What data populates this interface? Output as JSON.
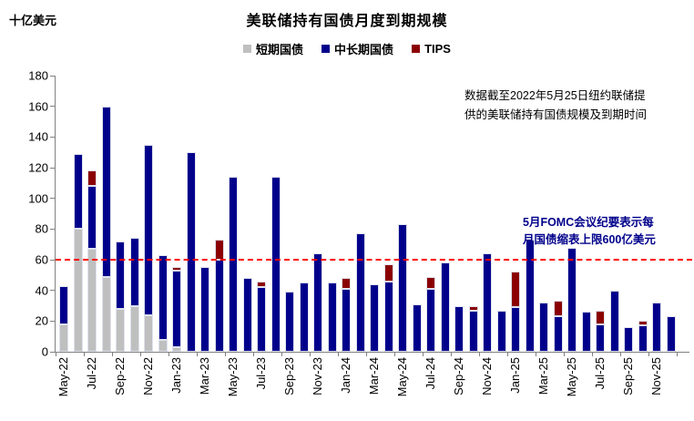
{
  "unit_label": "十亿美元",
  "title": "美联储持有国债月度到期规模",
  "legend": [
    {
      "label": "短期国债",
      "color": "#BFBFBF"
    },
    {
      "label": "中长期国债",
      "color": "#00008B"
    },
    {
      "label": "TIPS",
      "color": "#8B0000"
    }
  ],
  "annotations": {
    "data_note": {
      "line1": "数据截至2022年5月25日纽约联储提",
      "line2": "供的美联储持有国债规模及到期时间",
      "color": "#000000"
    },
    "fomc_note": {
      "line1": "5月FOMC会议纪要表示每",
      "line2": "月国债缩表上限600亿美元",
      "color": "#00008B"
    }
  },
  "chart_data": {
    "type": "bar",
    "stacked": true,
    "title": "美联储持有国债月度到期规模",
    "ylabel": "十亿美元",
    "xlabel": "",
    "ylim": [
      0,
      180
    ],
    "ytick_step": 20,
    "grid": false,
    "legend_position": "top",
    "categories": [
      "May-22",
      "Jun-22",
      "Jul-22",
      "Aug-22",
      "Sep-22",
      "Oct-22",
      "Nov-22",
      "Dec-22",
      "Jan-23",
      "Feb-23",
      "Mar-23",
      "Apr-23",
      "May-23",
      "Jun-23",
      "Jul-23",
      "Aug-23",
      "Sep-23",
      "Oct-23",
      "Nov-23",
      "Dec-23",
      "Jan-24",
      "Feb-24",
      "Mar-24",
      "Apr-24",
      "May-24",
      "Jun-24",
      "Jul-24",
      "Aug-24",
      "Sep-24",
      "Oct-24",
      "Nov-24",
      "Dec-24",
      "Jan-25",
      "Feb-25",
      "Mar-25",
      "Apr-25",
      "May-25",
      "Jun-25",
      "Jul-25",
      "Aug-25",
      "Sep-25",
      "Oct-25",
      "Nov-25",
      "Dec-25"
    ],
    "x_tick_labels": [
      "May-22",
      "Jul-22",
      "Sep-22",
      "Nov-22",
      "Jan-23",
      "Mar-23",
      "May-23",
      "Jul-23",
      "Sep-23",
      "Nov-23",
      "Jan-24",
      "Mar-24",
      "May-24",
      "Jul-24",
      "Sep-24",
      "Nov-24",
      "Jan-25",
      "Mar-25",
      "May-25",
      "Jul-25",
      "Sep-25",
      "Nov-25"
    ],
    "series": [
      {
        "name": "短期国债",
        "color": "#BFBFBF",
        "values": [
          18,
          80,
          67,
          49,
          28,
          30,
          24,
          8,
          3,
          0,
          0,
          0,
          0,
          0,
          0,
          0,
          0,
          0,
          0,
          0,
          0,
          0,
          0,
          0,
          0,
          0,
          0,
          0,
          0,
          0,
          0,
          0,
          0,
          0,
          0,
          0,
          0,
          0,
          0,
          0,
          0,
          0,
          0,
          0
        ]
      },
      {
        "name": "中长期国债",
        "color": "#00008B",
        "values": [
          25,
          49,
          41,
          111,
          44,
          44,
          111,
          55,
          50,
          130,
          55,
          60,
          114,
          48,
          42,
          114,
          39,
          45,
          64,
          45,
          41,
          77,
          44,
          46,
          83,
          31,
          41,
          58,
          30,
          27,
          64,
          27,
          29,
          73,
          32,
          23,
          68,
          26,
          18,
          40,
          16,
          17,
          32,
          23
        ]
      },
      {
        "name": "TIPS",
        "color": "#8B0000",
        "values": [
          0,
          0,
          10,
          0,
          0,
          0,
          0,
          0,
          2,
          0,
          0,
          13,
          0,
          0,
          4,
          0,
          0,
          0,
          0,
          0,
          7,
          0,
          0,
          11,
          0,
          0,
          8,
          0,
          0,
          3,
          0,
          0,
          23,
          0,
          0,
          10,
          0,
          0,
          9,
          0,
          0,
          3,
          0,
          0
        ]
      }
    ],
    "reference_line": {
      "value": 60,
      "color": "#FF0000",
      "style": "dashed"
    }
  }
}
